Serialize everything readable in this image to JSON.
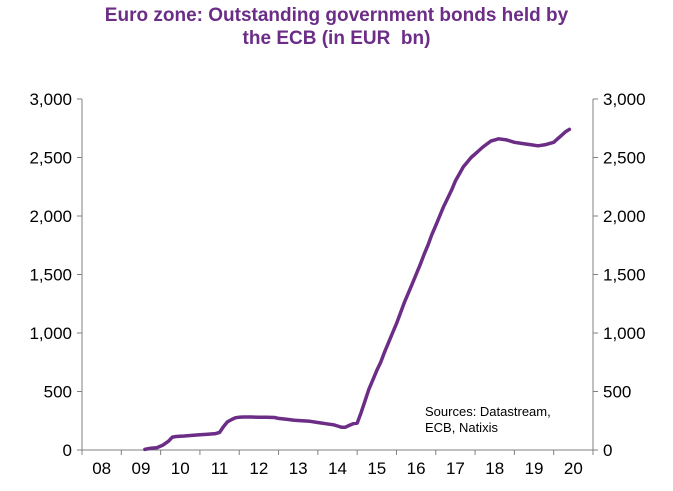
{
  "chart_data": {
    "type": "line",
    "title_line1": "Euro zone: Outstanding government bonds held by",
    "title_line2": "the ECB (in EUR  bn)",
    "xlabel": "",
    "ylabel": "",
    "x_tick_labels": [
      "08",
      "09",
      "10",
      "11",
      "12",
      "13",
      "14",
      "15",
      "16",
      "17",
      "18",
      "19",
      "20"
    ],
    "y_tick_labels": [
      "0",
      "500",
      "1,000",
      "1,500",
      "2,000",
      "2,500",
      "3,000"
    ],
    "y_ticks": [
      0,
      500,
      1000,
      1500,
      2000,
      2500,
      3000
    ],
    "xlim": [
      2008.0,
      2021.0
    ],
    "ylim": [
      0,
      3000
    ],
    "secondary_y_axis": true,
    "grid": false,
    "legend": "none",
    "line_color": "#6b2d86",
    "annotation_line1": "Sources:  Datastream,",
    "annotation_line2": "ECB, Natixis",
    "series": [
      {
        "x": [
          2009.6,
          2009.75,
          2009.9,
          2010.05,
          2010.2,
          2010.3,
          2010.4,
          2010.5,
          2010.6,
          2010.8,
          2011.0,
          2011.2,
          2011.4,
          2011.5,
          2011.6,
          2011.7,
          2011.8,
          2011.9,
          2012.0,
          2012.1,
          2012.3,
          2012.5,
          2012.7,
          2012.9,
          2013.0,
          2013.2,
          2013.4,
          2013.6,
          2013.8,
          2014.0,
          2014.2,
          2014.4,
          2014.5,
          2014.6,
          2014.7,
          2014.8,
          2014.9,
          2015.0,
          2015.1,
          2015.2,
          2015.3,
          2015.4,
          2015.5,
          2015.6,
          2015.7,
          2015.8,
          2015.9,
          2016.0,
          2016.1,
          2016.2,
          2016.3,
          2016.4,
          2016.5,
          2016.6,
          2016.7,
          2016.8,
          2016.9,
          2017.0,
          2017.1,
          2017.2,
          2017.3,
          2017.4,
          2017.5,
          2017.6,
          2017.7,
          2017.8,
          2017.9,
          2018.0,
          2018.1,
          2018.2,
          2018.4,
          2018.6,
          2018.8,
          2019.0,
          2019.2,
          2019.4,
          2019.6,
          2019.8,
          2020.0,
          2020.1,
          2020.2,
          2020.3,
          2020.4
        ],
        "y": [
          5,
          15,
          20,
          40,
          75,
          110,
          115,
          118,
          120,
          125,
          130,
          135,
          140,
          150,
          200,
          240,
          260,
          275,
          280,
          282,
          282,
          280,
          280,
          278,
          270,
          262,
          255,
          250,
          245,
          235,
          225,
          215,
          205,
          195,
          195,
          210,
          225,
          230,
          320,
          420,
          520,
          600,
          680,
          750,
          840,
          920,
          1000,
          1080,
          1170,
          1260,
          1340,
          1420,
          1500,
          1580,
          1670,
          1750,
          1840,
          1920,
          2000,
          2080,
          2150,
          2220,
          2300,
          2360,
          2420,
          2460,
          2500,
          2530,
          2560,
          2590,
          2640,
          2660,
          2650,
          2630,
          2620,
          2610,
          2600,
          2610,
          2630,
          2660,
          2690,
          2720,
          2740
        ]
      }
    ]
  }
}
